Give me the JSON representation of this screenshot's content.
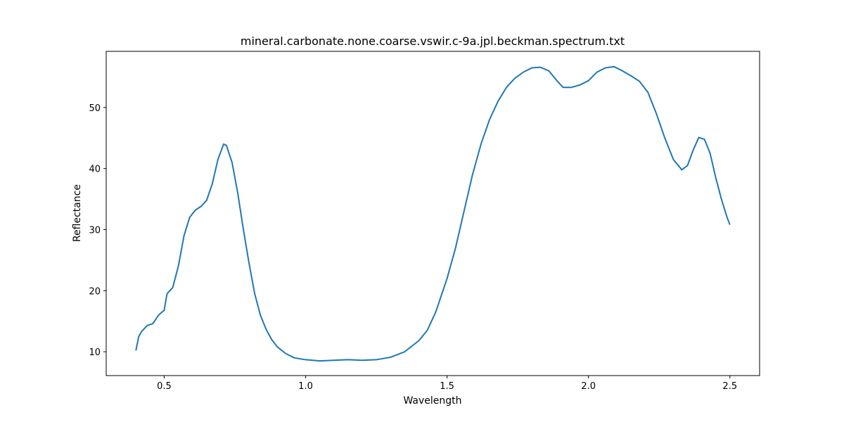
{
  "chart_data": {
    "type": "line",
    "title": "mineral.carbonate.none.coarse.vswir.c-9a.jpl.beckman.spectrum.txt",
    "x_label": "Wavelength",
    "y_label": "Reflectance",
    "x": [
      0.4,
      0.41,
      0.42,
      0.44,
      0.46,
      0.48,
      0.5,
      0.51,
      0.53,
      0.55,
      0.57,
      0.59,
      0.61,
      0.63,
      0.65,
      0.67,
      0.69,
      0.71,
      0.72,
      0.74,
      0.76,
      0.78,
      0.8,
      0.82,
      0.84,
      0.86,
      0.88,
      0.9,
      0.93,
      0.96,
      1.0,
      1.05,
      1.1,
      1.15,
      1.2,
      1.25,
      1.3,
      1.35,
      1.4,
      1.43,
      1.46,
      1.5,
      1.53,
      1.56,
      1.59,
      1.62,
      1.65,
      1.68,
      1.71,
      1.74,
      1.77,
      1.8,
      1.83,
      1.86,
      1.89,
      1.91,
      1.94,
      1.97,
      2.0,
      2.03,
      2.06,
      2.09,
      2.12,
      2.15,
      2.18,
      2.21,
      2.24,
      2.27,
      2.3,
      2.33,
      2.35,
      2.37,
      2.39,
      2.41,
      2.43,
      2.45,
      2.47,
      2.49,
      2.5
    ],
    "series": [
      {
        "color": "#1f77b4",
        "values": [
          10.2,
          12.5,
          13.3,
          14.3,
          14.6,
          16.0,
          16.8,
          19.5,
          20.5,
          24,
          29,
          32,
          33.2,
          33.8,
          34.8,
          37.5,
          41.5,
          44.0,
          43.8,
          41,
          36,
          30,
          24.5,
          19.5,
          16,
          13.7,
          12,
          10.8,
          9.7,
          9.0,
          8.7,
          8.5,
          8.6,
          8.7,
          8.6,
          8.7,
          9.1,
          10.0,
          11.8,
          13.5,
          16.5,
          22,
          27,
          33,
          39,
          44,
          48,
          51,
          53.3,
          54.8,
          55.8,
          56.5,
          56.6,
          56.0,
          54.3,
          53.3,
          53.3,
          53.7,
          54.4,
          55.8,
          56.5,
          56.7,
          56.0,
          55.2,
          54.3,
          52.5,
          49,
          45,
          41.5,
          39.8,
          40.5,
          43,
          45.1,
          44.8,
          42.5,
          38.5,
          35,
          32,
          30.8
        ]
      }
    ],
    "xlim": [
      0.295,
      2.605
    ],
    "ylim": [
      6.1,
      59.2
    ],
    "xticks": [
      0.5,
      {
        "value": 1,
        "label": "1.0"
      },
      1.5,
      {
        "value": 2,
        "label": "2.0"
      },
      2.5
    ],
    "yticks": [
      10,
      20,
      30,
      40,
      50
    ]
  }
}
